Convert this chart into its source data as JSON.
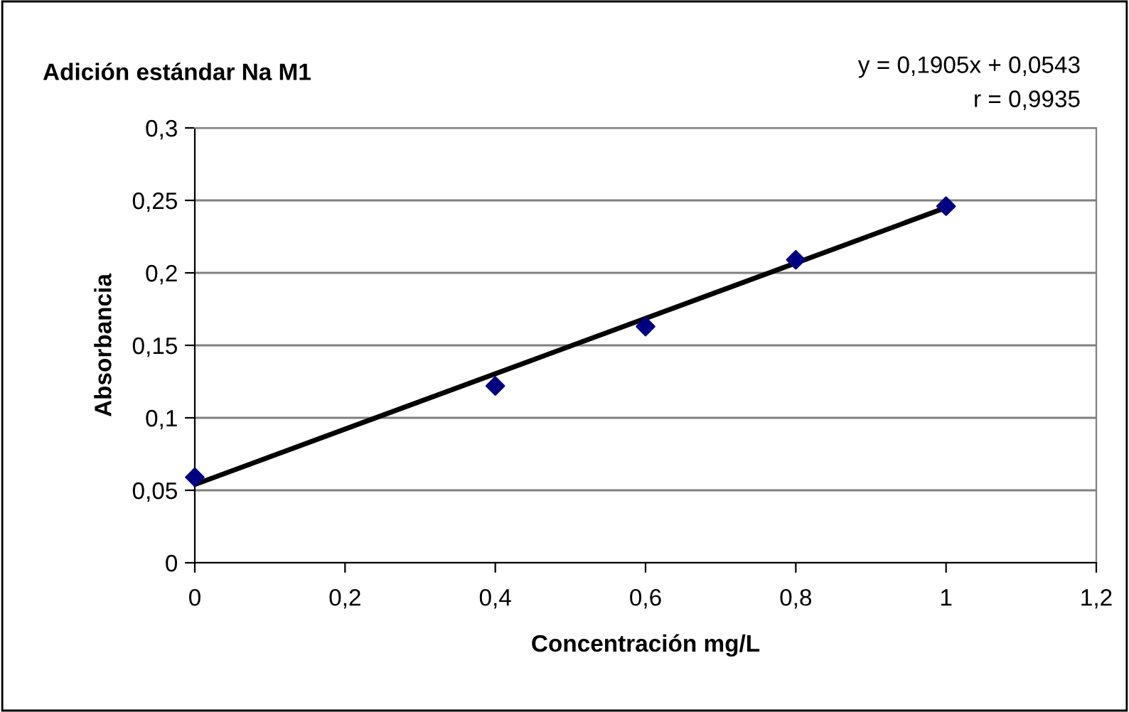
{
  "chart_data": {
    "type": "scatter",
    "title": "Adición estándar Na M1",
    "xlabel": "Concentración mg/L",
    "ylabel": "Absorbancia",
    "annotations": [
      "y = 0,1905x + 0,0543",
      "r = 0,9935"
    ],
    "series": [
      {
        "color": "#000080",
        "marker": "diamond",
        "x": [
          0,
          0.4,
          0.6,
          0.8,
          1
        ],
        "values": [
          0.059,
          0.122,
          0.163,
          0.209,
          0.246
        ]
      },
      {
        "type": "line",
        "color": "#000000",
        "x": [
          0,
          1
        ],
        "values": [
          0.054,
          0.245
        ]
      }
    ],
    "xlim": [
      0,
      1.2
    ],
    "ylim": [
      0,
      0.3
    ],
    "xticks": [
      0,
      {
        "value": 0.2,
        "label": "0,2"
      },
      {
        "value": 0.4,
        "label": "0,4"
      },
      {
        "value": 0.6,
        "label": "0,6"
      },
      {
        "value": 0.8,
        "label": "0,8"
      },
      1,
      {
        "value": 1.2,
        "label": "1,2"
      }
    ],
    "yticks": [
      0,
      {
        "value": 0.05,
        "label": "0,05"
      },
      {
        "value": 0.1,
        "label": "0,1"
      },
      {
        "value": 0.15,
        "label": "0,15"
      },
      {
        "value": 0.2,
        "label": "0,2"
      },
      {
        "value": 0.25,
        "label": "0,25"
      },
      {
        "value": 0.3,
        "label": "0,3"
      }
    ],
    "grid": "y",
    "legend": false
  }
}
